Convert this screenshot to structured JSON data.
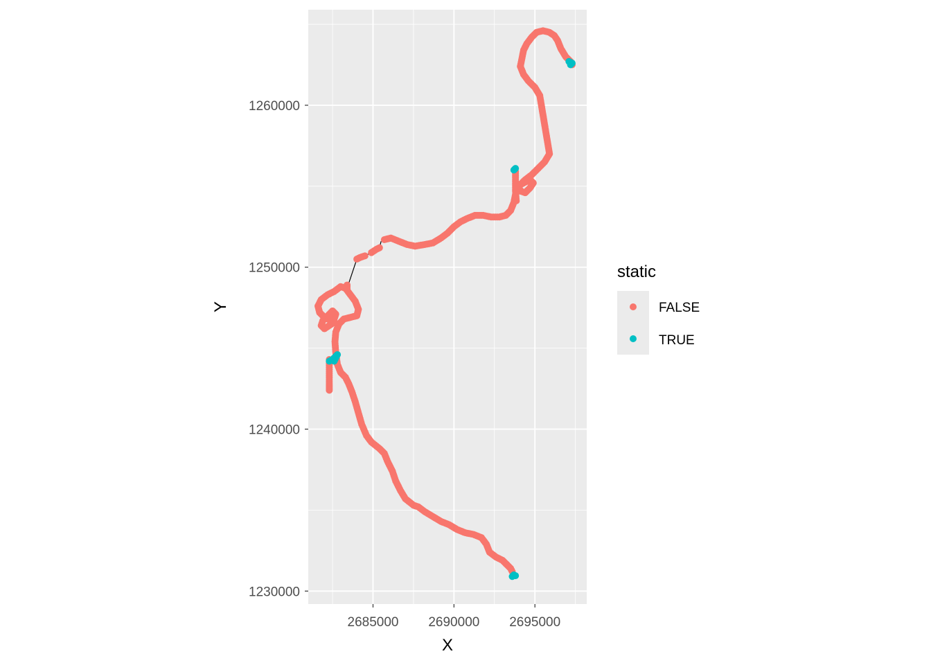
{
  "chart_data": {
    "type": "scatter",
    "xlabel": "X",
    "ylabel": "Y",
    "xlim": [
      2681000,
      2698200
    ],
    "ylim": [
      1229200,
      1265900
    ],
    "x_ticks": [
      2685000,
      2690000,
      2695000
    ],
    "x_tick_labels": [
      "2685000",
      "2690000",
      "2695000"
    ],
    "y_ticks": [
      1230000,
      1240000,
      1250000,
      1260000
    ],
    "y_tick_labels": [
      "1230000",
      "1240000",
      "1250000",
      "1260000"
    ],
    "grid": true,
    "background": "#ebebeb",
    "legend": {
      "title": "static",
      "position": "right",
      "entries": [
        {
          "label": "FALSE",
          "color": "#f8766d"
        },
        {
          "label": "TRUE",
          "color": "#00bfc4"
        }
      ]
    },
    "series": [
      {
        "name": "FALSE",
        "color": "#f8766d",
        "segments": [
          [
            [
              2693600,
              1231200
            ],
            [
              2693500,
              1231400
            ],
            [
              2693300,
              1231600
            ],
            [
              2693200,
              1231700
            ],
            [
              2693000,
              1231900
            ],
            [
              2692600,
              1232100
            ],
            [
              2692200,
              1232400
            ],
            [
              2692000,
              1232900
            ],
            [
              2691700,
              1233300
            ],
            [
              2691200,
              1233500
            ],
            [
              2690700,
              1233600
            ],
            [
              2690200,
              1233800
            ],
            [
              2689700,
              1234100
            ],
            [
              2689200,
              1234300
            ],
            [
              2688700,
              1234600
            ],
            [
              2688200,
              1234900
            ],
            [
              2687800,
              1235200
            ],
            [
              2687500,
              1235300
            ],
            [
              2687000,
              1235700
            ],
            [
              2686700,
              1236200
            ],
            [
              2686400,
              1236800
            ],
            [
              2686200,
              1237400
            ],
            [
              2685900,
              1238000
            ],
            [
              2685700,
              1238500
            ],
            [
              2685400,
              1238800
            ],
            [
              2684900,
              1239200
            ],
            [
              2684600,
              1239600
            ],
            [
              2684300,
              1240300
            ],
            [
              2684100,
              1241000
            ],
            [
              2683900,
              1241700
            ],
            [
              2683700,
              1242300
            ],
            [
              2683500,
              1242800
            ],
            [
              2683300,
              1243200
            ],
            [
              2683000,
              1243500
            ],
            [
              2682800,
              1244000
            ],
            [
              2682700,
              1244700
            ],
            [
              2682650,
              1245400
            ],
            [
              2682700,
              1246000
            ],
            [
              2682900,
              1246500
            ],
            [
              2683200,
              1246800
            ],
            [
              2683600,
              1246900
            ],
            [
              2684000,
              1247000
            ],
            [
              2684100,
              1247400
            ],
            [
              2683900,
              1247900
            ],
            [
              2683600,
              1248300
            ],
            [
              2683300,
              1248700
            ],
            [
              2683000,
              1248800
            ],
            [
              2682600,
              1248500
            ],
            [
              2682200,
              1248300
            ],
            [
              2681800,
              1248000
            ],
            [
              2681600,
              1247600
            ],
            [
              2681700,
              1247200
            ],
            [
              2682000,
              1246900
            ],
            [
              2682400,
              1246700
            ],
            [
              2682600,
              1246800
            ],
            [
              2682700,
              1247100
            ],
            [
              2682500,
              1247300
            ],
            [
              2682200,
              1247000
            ],
            [
              2681900,
              1246700
            ],
            [
              2681800,
              1246400
            ],
            [
              2682000,
              1246200
            ],
            [
              2682300,
              1246400
            ],
            [
              2682600,
              1246600
            ]
          ],
          [
            [
              2682300,
              1244300
            ],
            [
              2682300,
              1243800
            ],
            [
              2682300,
              1243300
            ],
            [
              2682300,
              1242800
            ],
            [
              2682300,
              1242400
            ]
          ],
          [
            [
              2683400,
              1248900
            ],
            [
              2683400,
              1248700
            ]
          ],
          [
            [
              2684000,
              1250500
            ],
            [
              2684200,
              1250600
            ],
            [
              2684500,
              1250700
            ]
          ],
          [
            [
              2684900,
              1250900
            ],
            [
              2685200,
              1251100
            ],
            [
              2685400,
              1251200
            ]
          ],
          [
            [
              2685700,
              1251700
            ],
            [
              2686100,
              1251800
            ],
            [
              2686600,
              1251600
            ],
            [
              2687100,
              1251400
            ],
            [
              2687600,
              1251300
            ],
            [
              2688200,
              1251400
            ],
            [
              2688700,
              1251500
            ],
            [
              2689200,
              1251800
            ],
            [
              2689600,
              1252100
            ],
            [
              2690000,
              1252500
            ],
            [
              2690400,
              1252800
            ],
            [
              2690800,
              1253000
            ],
            [
              2691300,
              1253200
            ],
            [
              2691800,
              1253200
            ],
            [
              2692300,
              1253100
            ],
            [
              2692800,
              1253100
            ],
            [
              2693200,
              1253200
            ],
            [
              2693500,
              1253500
            ],
            [
              2693700,
              1254000
            ],
            [
              2693800,
              1254500
            ],
            [
              2693900,
              1255000
            ],
            [
              2694300,
              1255200
            ],
            [
              2694700,
              1255400
            ],
            [
              2694900,
              1255200
            ],
            [
              2694700,
              1254900
            ],
            [
              2694400,
              1254600
            ],
            [
              2694100,
              1254700
            ],
            [
              2694000,
              1255000
            ],
            [
              2694400,
              1255400
            ],
            [
              2694800,
              1255700
            ],
            [
              2695200,
              1256100
            ],
            [
              2695600,
              1256500
            ],
            [
              2695900,
              1257000
            ],
            [
              2695800,
              1257600
            ],
            [
              2695700,
              1258200
            ],
            [
              2695600,
              1258800
            ],
            [
              2695500,
              1259400
            ],
            [
              2695400,
              1260000
            ],
            [
              2695300,
              1260600
            ],
            [
              2695000,
              1261100
            ],
            [
              2694600,
              1261500
            ],
            [
              2694300,
              1261900
            ],
            [
              2694100,
              1262400
            ],
            [
              2694200,
              1262900
            ],
            [
              2694300,
              1263400
            ],
            [
              2694500,
              1263800
            ],
            [
              2694800,
              1264200
            ],
            [
              2695100,
              1264500
            ],
            [
              2695500,
              1264600
            ],
            [
              2695900,
              1264500
            ],
            [
              2696200,
              1264300
            ],
            [
              2696400,
              1264000
            ],
            [
              2696600,
              1263500
            ],
            [
              2696900,
              1263000
            ],
            [
              2697200,
              1262700
            ],
            [
              2697300,
              1262500
            ]
          ],
          [
            [
              2693800,
              1255900
            ],
            [
              2693800,
              1255300
            ],
            [
              2693800,
              1254700
            ],
            [
              2693850,
              1254100
            ]
          ]
        ]
      },
      {
        "name": "TRUE",
        "color": "#00bfc4",
        "segments": [
          [
            [
              2693600,
              1230900
            ],
            [
              2693700,
              1231000
            ],
            [
              2693800,
              1230950
            ]
          ],
          [
            [
              2682600,
              1244200
            ],
            [
              2682700,
              1244400
            ],
            [
              2682800,
              1244600
            ],
            [
              2682500,
              1244300
            ],
            [
              2682300,
              1244200
            ]
          ],
          [
            [
              2693800,
              1256100
            ],
            [
              2693700,
              1256000
            ]
          ],
          [
            [
              2697100,
              1262700
            ],
            [
              2697300,
              1262600
            ],
            [
              2697200,
              1262500
            ]
          ]
        ]
      }
    ],
    "connector_lines": [
      [
        [
          2683400,
          1248700
        ],
        [
          2684000,
          1250500
        ]
      ],
      [
        [
          2684500,
          1250700
        ],
        [
          2684900,
          1250900
        ]
      ],
      [
        [
          2685400,
          1251200
        ],
        [
          2685500,
          1251600
        ]
      ]
    ]
  }
}
